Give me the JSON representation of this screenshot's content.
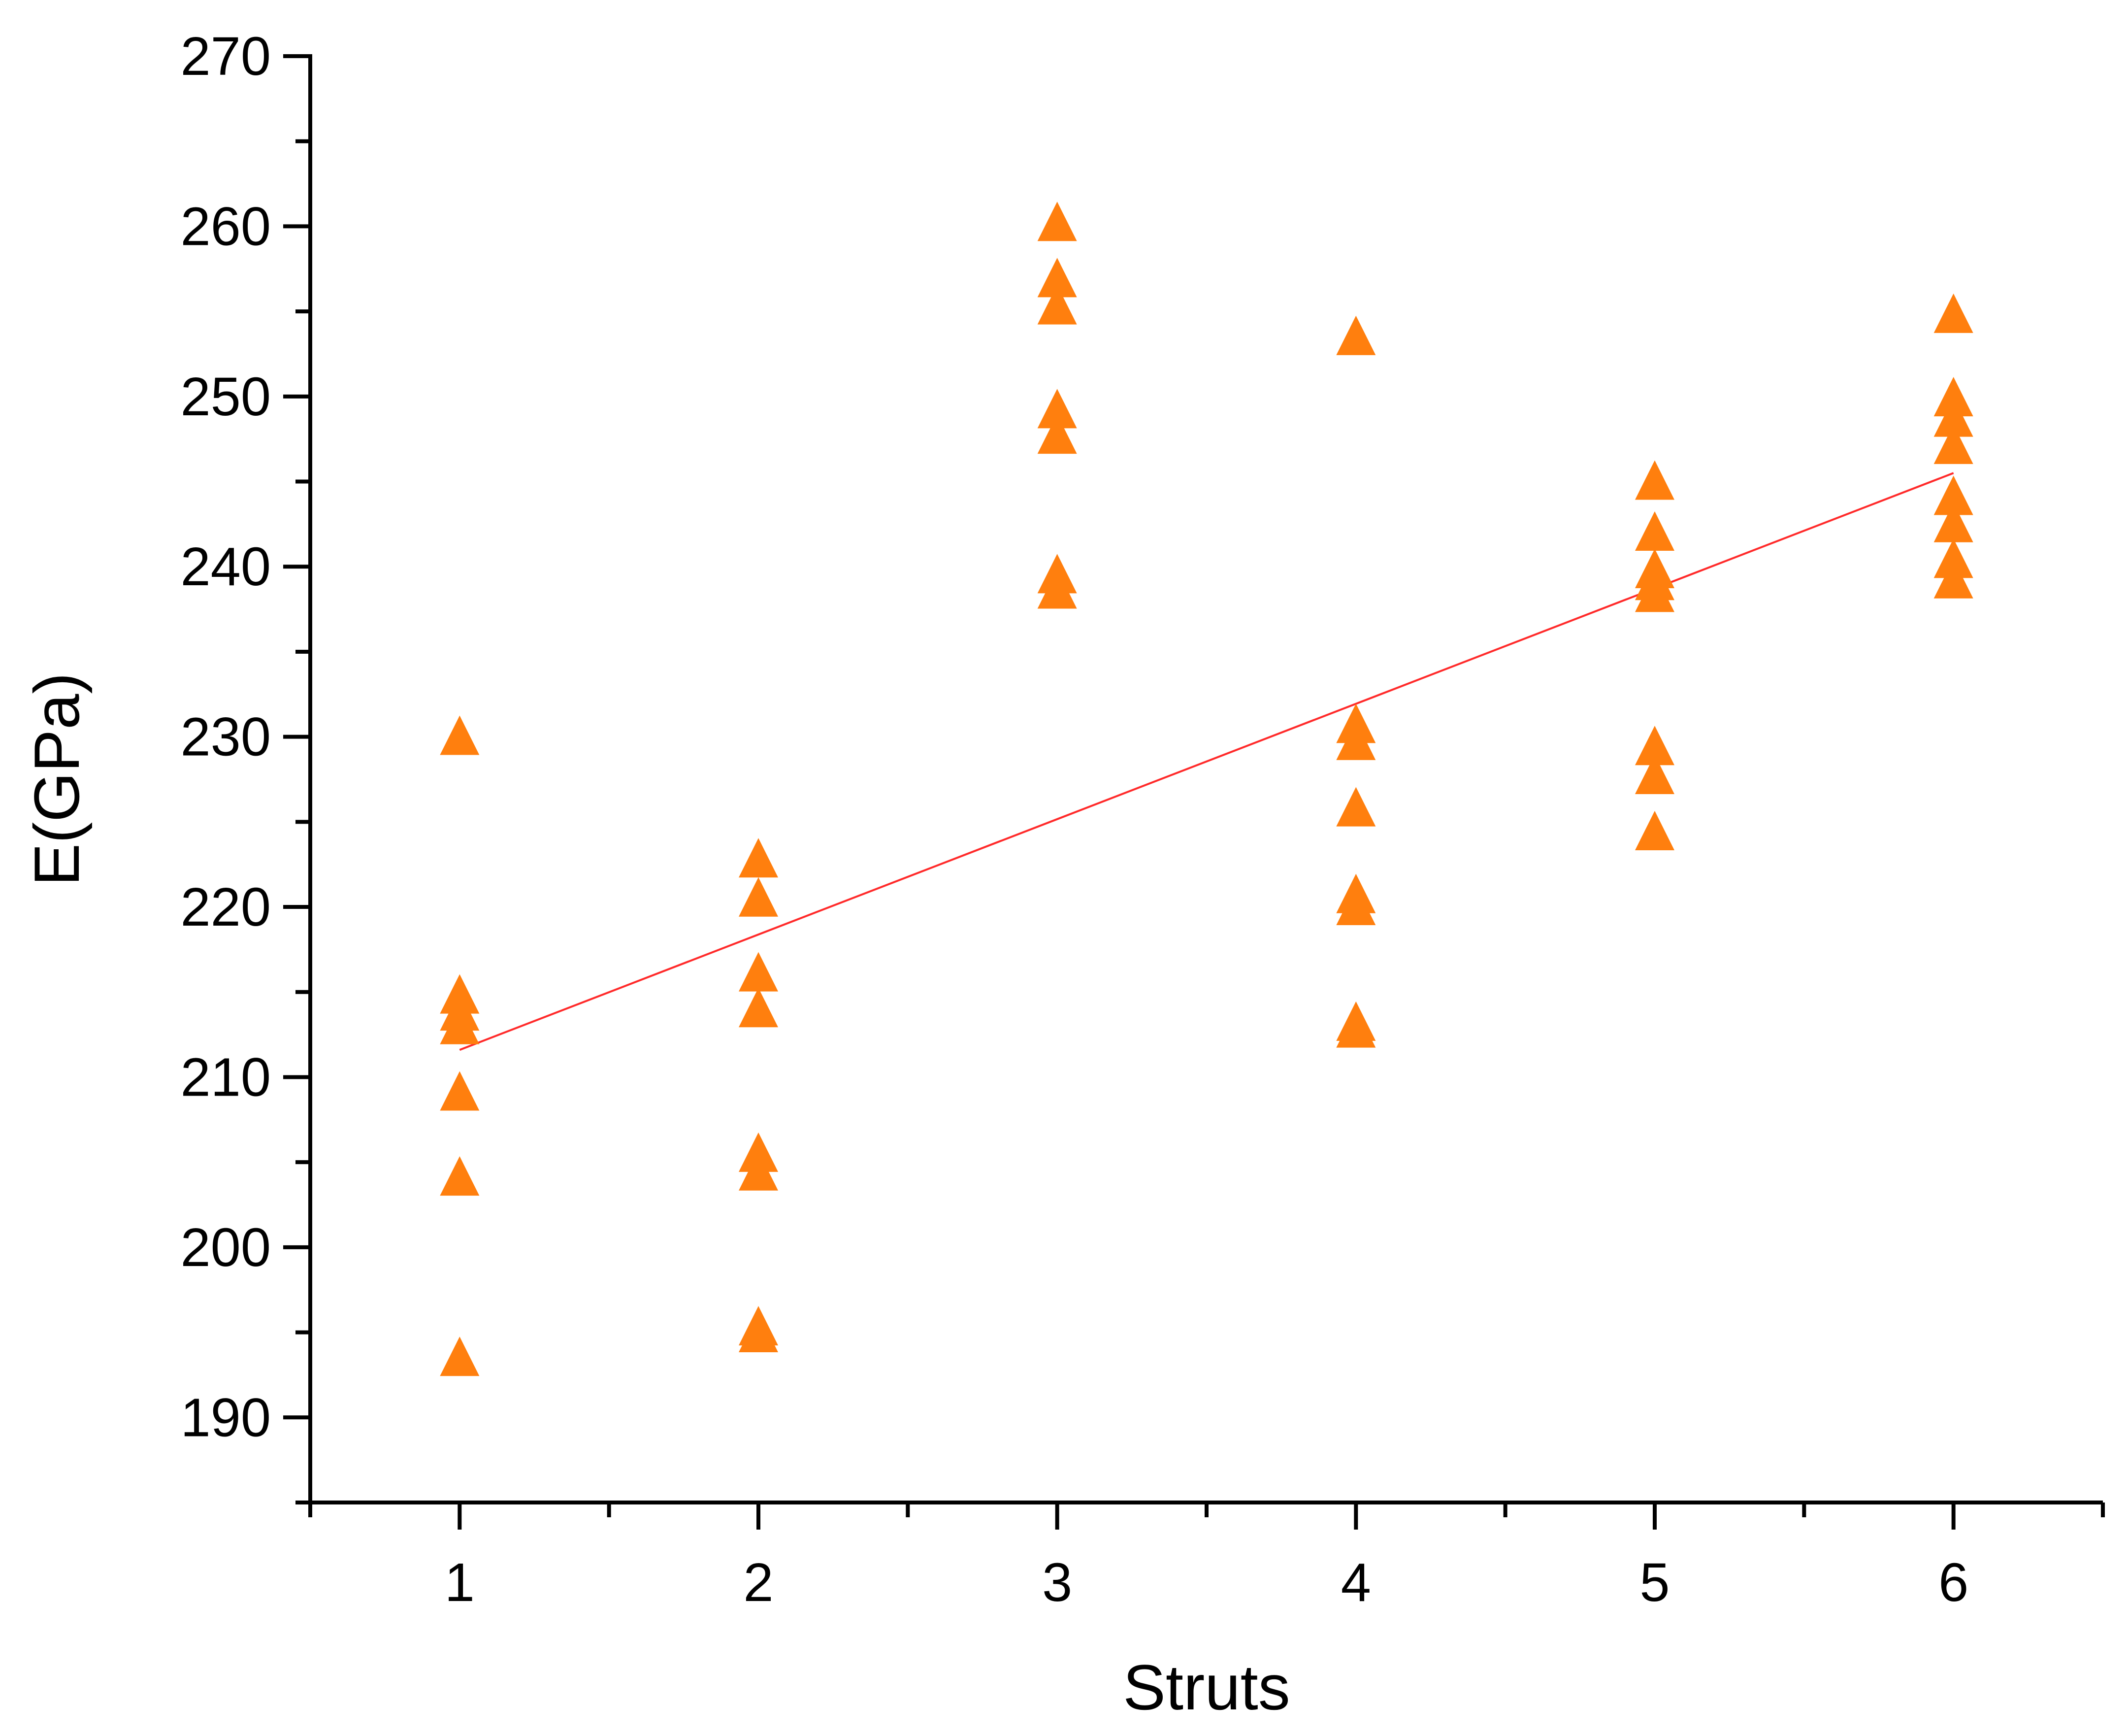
{
  "chart_data": {
    "type": "scatter",
    "xlabel": "Struts",
    "ylabel": "E(GPa)",
    "xlim": [
      0.5,
      6.5
    ],
    "ylim": [
      185,
      270
    ],
    "x_ticks": [
      1,
      2,
      3,
      4,
      5,
      6
    ],
    "y_ticks": [
      190,
      200,
      210,
      220,
      230,
      240,
      250,
      260,
      270
    ],
    "grid": false,
    "legend": "none",
    "marker": "triangle-up",
    "marker_color": "#ff7f0e",
    "fit_line_color": "#ff2a2a",
    "series": [
      {
        "points": [
          {
            "x": 1,
            "y": 229.8
          },
          {
            "x": 1,
            "y": 214.6
          },
          {
            "x": 1,
            "y": 213.6
          },
          {
            "x": 1,
            "y": 212.8
          },
          {
            "x": 1,
            "y": 208.9
          },
          {
            "x": 1,
            "y": 203.9
          },
          {
            "x": 1,
            "y": 193.3
          },
          {
            "x": 2,
            "y": 222.6
          },
          {
            "x": 2,
            "y": 220.3
          },
          {
            "x": 2,
            "y": 215.9
          },
          {
            "x": 2,
            "y": 213.8
          },
          {
            "x": 2,
            "y": 205.3
          },
          {
            "x": 2,
            "y": 204.2
          },
          {
            "x": 2,
            "y": 195.1
          },
          {
            "x": 2,
            "y": 194.7
          },
          {
            "x": 3,
            "y": 260.0
          },
          {
            "x": 3,
            "y": 256.7
          },
          {
            "x": 3,
            "y": 255.1
          },
          {
            "x": 3,
            "y": 249.0
          },
          {
            "x": 3,
            "y": 247.5
          },
          {
            "x": 3,
            "y": 239.3
          },
          {
            "x": 3,
            "y": 238.4
          },
          {
            "x": 4,
            "y": 253.3
          },
          {
            "x": 4,
            "y": 230.5
          },
          {
            "x": 4,
            "y": 229.5
          },
          {
            "x": 4,
            "y": 225.6
          },
          {
            "x": 4,
            "y": 220.5
          },
          {
            "x": 4,
            "y": 219.8
          },
          {
            "x": 4,
            "y": 213.0
          },
          {
            "x": 4,
            "y": 212.6
          },
          {
            "x": 5,
            "y": 244.8
          },
          {
            "x": 5,
            "y": 241.8
          },
          {
            "x": 5,
            "y": 239.6
          },
          {
            "x": 5,
            "y": 238.9
          },
          {
            "x": 5,
            "y": 238.2
          },
          {
            "x": 5,
            "y": 229.2
          },
          {
            "x": 5,
            "y": 227.5
          },
          {
            "x": 5,
            "y": 224.2
          },
          {
            "x": 6,
            "y": 254.6
          },
          {
            "x": 6,
            "y": 249.7
          },
          {
            "x": 6,
            "y": 248.5
          },
          {
            "x": 6,
            "y": 246.9
          },
          {
            "x": 6,
            "y": 243.9
          },
          {
            "x": 6,
            "y": 242.3
          },
          {
            "x": 6,
            "y": 240.2
          },
          {
            "x": 6,
            "y": 239.0
          }
        ]
      }
    ],
    "fit_line": {
      "x": [
        1,
        6
      ],
      "y": [
        211.6,
        245.5
      ]
    }
  }
}
